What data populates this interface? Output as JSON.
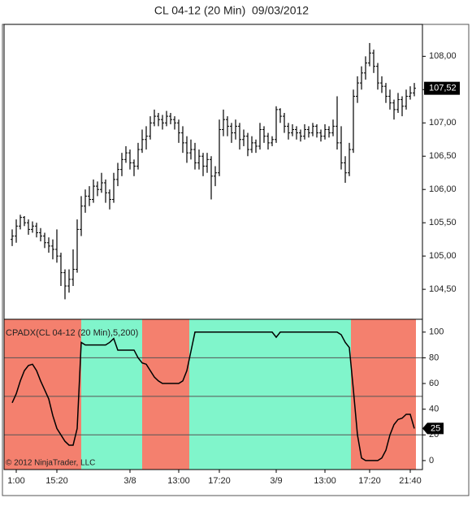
{
  "chart_data": [
    {
      "type": "ohlc",
      "title": "CL 04-12 (20 Min)  09/03/2012",
      "xlim": [
        -2,
        101
      ],
      "ylim": [
        104.05,
        108.48
      ],
      "yticks": [
        {
          "value": 104.5,
          "label": "104,50"
        },
        {
          "value": 105,
          "label": "105,00"
        },
        {
          "value": 105.5,
          "label": "105,50"
        },
        {
          "value": 106,
          "label": "106,00"
        },
        {
          "value": 106.5,
          "label": "106,50"
        },
        {
          "value": 107,
          "label": "107,00"
        },
        {
          "value": 107.5,
          "label": "107,50"
        },
        {
          "value": 108,
          "label": "108,00"
        }
      ],
      "color": "#000000",
      "last_price": {
        "value": 107.52,
        "label": "107,52"
      },
      "ohlc": [
        [
          105.25,
          105.4,
          105.15,
          105.3
        ],
        [
          105.3,
          105.55,
          105.2,
          105.45
        ],
        [
          105.45,
          105.62,
          105.4,
          105.58
        ],
        [
          105.58,
          105.6,
          105.45,
          105.5
        ],
        [
          105.5,
          105.55,
          105.32,
          105.4
        ],
        [
          105.4,
          105.52,
          105.35,
          105.45
        ],
        [
          105.45,
          105.5,
          105.28,
          105.35
        ],
        [
          105.35,
          105.42,
          105.22,
          105.3
        ],
        [
          105.3,
          105.35,
          105.12,
          105.2
        ],
        [
          105.2,
          105.28,
          105.05,
          105.15
        ],
        [
          105.15,
          105.25,
          104.95,
          105.1
        ],
        [
          105.1,
          105.4,
          104.9,
          105.0
        ],
        [
          105.0,
          105.05,
          104.55,
          104.75
        ],
        [
          104.75,
          104.8,
          104.35,
          104.55
        ],
        [
          104.55,
          104.8,
          104.45,
          104.65
        ],
        [
          104.65,
          105.1,
          104.55,
          104.8
        ],
        [
          104.8,
          105.55,
          104.75,
          105.4
        ],
        [
          105.4,
          105.9,
          105.3,
          105.75
        ],
        [
          105.75,
          106.0,
          105.65,
          105.9
        ],
        [
          105.9,
          106.05,
          105.75,
          105.85
        ],
        [
          105.85,
          106.15,
          105.8,
          106.05
        ],
        [
          106.05,
          106.12,
          105.9,
          106.0
        ],
        [
          106.0,
          106.25,
          105.95,
          106.1
        ],
        [
          106.1,
          106.15,
          105.8,
          105.95
        ],
        [
          105.95,
          106.0,
          105.7,
          105.85
        ],
        [
          105.85,
          106.25,
          105.8,
          106.15
        ],
        [
          106.15,
          106.4,
          106.05,
          106.3
        ],
        [
          106.3,
          106.55,
          106.2,
          106.45
        ],
        [
          106.45,
          106.65,
          106.4,
          106.55
        ],
        [
          106.55,
          106.6,
          106.3,
          106.4
        ],
        [
          106.4,
          106.45,
          106.2,
          106.35
        ],
        [
          106.35,
          106.7,
          106.3,
          106.6
        ],
        [
          106.6,
          106.9,
          106.55,
          106.75
        ],
        [
          106.75,
          106.95,
          106.6,
          106.8
        ],
        [
          106.8,
          107.1,
          106.75,
          107.0
        ],
        [
          107.0,
          107.2,
          106.95,
          107.1
        ],
        [
          107.1,
          107.15,
          106.95,
          107.05
        ],
        [
          107.05,
          107.12,
          106.9,
          107.0
        ],
        [
          107.0,
          107.18,
          106.95,
          107.1
        ],
        [
          107.1,
          107.15,
          106.98,
          107.05
        ],
        [
          107.05,
          107.1,
          106.9,
          107.0
        ],
        [
          107.0,
          107.05,
          106.7,
          106.85
        ],
        [
          106.85,
          106.95,
          106.55,
          106.7
        ],
        [
          106.7,
          106.8,
          106.4,
          106.55
        ],
        [
          106.55,
          106.75,
          106.45,
          106.6
        ],
        [
          106.6,
          106.7,
          106.3,
          106.4
        ],
        [
          106.4,
          106.6,
          106.3,
          106.5
        ],
        [
          106.5,
          106.55,
          106.2,
          106.35
        ],
        [
          106.35,
          106.55,
          106.25,
          106.45
        ],
        [
          106.45,
          106.5,
          105.85,
          106.2
        ],
        [
          106.2,
          106.35,
          106.05,
          106.25
        ],
        [
          106.25,
          107.05,
          106.2,
          106.9
        ],
        [
          106.9,
          107.2,
          106.8,
          107.05
        ],
        [
          107.05,
          107.1,
          106.8,
          106.95
        ],
        [
          106.95,
          107.0,
          106.7,
          106.85
        ],
        [
          106.85,
          107.05,
          106.75,
          106.95
        ],
        [
          106.95,
          107.0,
          106.6,
          106.75
        ],
        [
          106.75,
          106.9,
          106.65,
          106.8
        ],
        [
          106.8,
          106.85,
          106.5,
          106.6
        ],
        [
          106.6,
          106.8,
          106.55,
          106.7
        ],
        [
          106.7,
          106.75,
          106.55,
          106.65
        ],
        [
          106.65,
          107.0,
          106.6,
          106.9
        ],
        [
          106.9,
          106.95,
          106.7,
          106.8
        ],
        [
          106.8,
          106.85,
          106.6,
          106.7
        ],
        [
          106.7,
          106.8,
          106.65,
          106.75
        ],
        [
          106.75,
          107.25,
          106.7,
          107.2
        ],
        [
          107.2,
          107.22,
          107.0,
          107.1
        ],
        [
          107.1,
          107.15,
          106.85,
          106.95
        ],
        [
          106.95,
          107.0,
          106.75,
          106.85
        ],
        [
          106.85,
          106.98,
          106.8,
          106.9
        ],
        [
          106.9,
          106.95,
          106.75,
          106.85
        ],
        [
          106.85,
          106.9,
          106.72,
          106.8
        ],
        [
          106.8,
          106.98,
          106.75,
          106.9
        ],
        [
          106.9,
          106.95,
          106.78,
          106.85
        ],
        [
          106.85,
          107.0,
          106.8,
          106.95
        ],
        [
          106.95,
          106.98,
          106.78,
          106.85
        ],
        [
          106.85,
          106.9,
          106.72,
          106.8
        ],
        [
          106.8,
          106.98,
          106.75,
          106.9
        ],
        [
          106.9,
          106.95,
          106.78,
          106.85
        ],
        [
          106.85,
          107.05,
          106.8,
          106.95
        ],
        [
          106.95,
          107.4,
          106.6,
          106.7
        ],
        [
          106.7,
          106.95,
          106.3,
          106.4
        ],
        [
          106.4,
          106.5,
          106.1,
          106.25
        ],
        [
          106.25,
          106.7,
          106.2,
          106.6
        ],
        [
          106.6,
          107.5,
          106.55,
          107.4
        ],
        [
          107.4,
          107.7,
          107.3,
          107.6
        ],
        [
          107.6,
          107.85,
          107.5,
          107.75
        ],
        [
          107.75,
          108.0,
          107.65,
          107.9
        ],
        [
          107.9,
          108.2,
          107.85,
          108.05
        ],
        [
          108.05,
          108.1,
          107.75,
          107.85
        ],
        [
          107.85,
          107.9,
          107.5,
          107.6
        ],
        [
          107.6,
          107.7,
          107.45,
          107.55
        ],
        [
          107.55,
          107.6,
          107.3,
          107.4
        ],
        [
          107.4,
          107.5,
          107.2,
          107.3
        ],
        [
          107.3,
          107.35,
          107.05,
          107.2
        ],
        [
          107.2,
          107.45,
          107.15,
          107.35
        ],
        [
          107.35,
          107.4,
          107.1,
          107.25
        ],
        [
          107.25,
          107.5,
          107.2,
          107.4
        ],
        [
          107.4,
          107.55,
          107.35,
          107.45
        ],
        [
          107.45,
          107.6,
          107.4,
          107.52
        ]
      ]
    },
    {
      "type": "line",
      "label": "CPADX(CL 04-12 (20 Min),5,200)",
      "copyright": "© 2012 NinjaTrader, LLC",
      "xlim": [
        -2,
        101
      ],
      "ylim": [
        -7,
        110
      ],
      "yticks": [
        0,
        20,
        40,
        60,
        80,
        100
      ],
      "xticks": [
        {
          "value": 1,
          "label": "1:00"
        },
        {
          "value": 11,
          "label": "15:20"
        },
        {
          "value": 29,
          "label": "3/8"
        },
        {
          "value": 41,
          "label": "13:00"
        },
        {
          "value": 51,
          "label": "17:20"
        },
        {
          "value": 65,
          "label": "3/9"
        },
        {
          "value": 77,
          "label": "13:00"
        },
        {
          "value": 88,
          "label": "17:20"
        },
        {
          "value": 98,
          "label": "21:40"
        }
      ],
      "color": "#000000",
      "levels": [
        80,
        50,
        20
      ],
      "last_value": 25,
      "regions": [
        {
          "from": -2,
          "to": 17,
          "color": "#f4806e"
        },
        {
          "from": 17,
          "to": 32,
          "color": "#80f5cb"
        },
        {
          "from": 32,
          "to": 43.6,
          "color": "#f4806e"
        },
        {
          "from": 43.6,
          "to": 83.4,
          "color": "#80f5cb"
        },
        {
          "from": 83.4,
          "to": 99.4,
          "color": "#f4806e"
        }
      ],
      "values": [
        45,
        52,
        62,
        70,
        74,
        75,
        70,
        62,
        55,
        48,
        35,
        25,
        20,
        15,
        12,
        12,
        25,
        92,
        90,
        90,
        90,
        90,
        90,
        90,
        92,
        95,
        86,
        86,
        86,
        86,
        86,
        80,
        76,
        75,
        70,
        65,
        62,
        60,
        60,
        60,
        60,
        60,
        62,
        70,
        85,
        100,
        100,
        100,
        100,
        100,
        100,
        100,
        100,
        100,
        100,
        100,
        100,
        100,
        100,
        100,
        100,
        100,
        100,
        100,
        100,
        96,
        100,
        100,
        100,
        100,
        100,
        100,
        100,
        100,
        100,
        100,
        100,
        100,
        100,
        100,
        100,
        98,
        92,
        88,
        55,
        20,
        2,
        0,
        0,
        0,
        0,
        2,
        8,
        20,
        28,
        32,
        33,
        36,
        36,
        25
      ]
    }
  ]
}
